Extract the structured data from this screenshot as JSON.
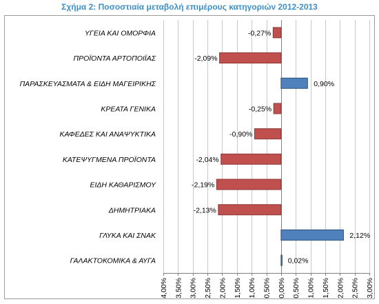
{
  "chart_data": {
    "type": "bar",
    "orientation": "horizontal",
    "title": "Σχήμα 2: Ποσοστιαία μεταβολή επιμέρους κατηγοριών 2012-2013",
    "xlabel": "",
    "ylabel": "",
    "categories": [
      "ΥΓΕΙΑ ΚΑΙ ΟΜΟΡΦΙΑ",
      "ΠΡΟΪΟΝΤΑ ΑΡΤΟΠΟΙΪΑΣ",
      "ΠΑΡΑΣΚΕΥΑΣΜΑΤΑ  & ΕΙΔΗ ΜΑΓΕΙΡΙΚΗΣ",
      "ΚΡΕΑΤΑ ΓΕΝΙΚΑ",
      "ΚΑΦΕΔΕΣ ΚΑΙ ΑΝΑΨΥΚΤΙΚΑ",
      "ΚΑΤΕΨΥΓΜΕΝΑ ΠΡΟΪΟΝΤΑ",
      "ΕΙΔΗ ΚΑΘΑΡΙΣΜΟΥ",
      "ΔΗΜΗΤΡΙΑΚΑ",
      "ΓΛΥΚΑ ΚΑΙ ΣΝΑΚ",
      "ΓΑΛΑΚΤΟΚΟΜΙΚΑ  & ΑΥΓΑ"
    ],
    "values": [
      -0.27,
      -2.09,
      0.9,
      -0.25,
      -0.9,
      -2.04,
      -2.19,
      -2.13,
      2.12,
      0.02
    ],
    "value_labels": [
      "-0,27%",
      "-2,09%",
      "0,90%",
      "-0,25%",
      "-0,90%",
      "-2,04%",
      "-2,19%",
      "-2,13%",
      "2,12%",
      "0,02%"
    ],
    "xlim": [
      -4.0,
      3.0
    ],
    "xticks": [
      -4.0,
      -3.5,
      -3.0,
      -2.5,
      -2.0,
      -1.5,
      -1.0,
      -0.5,
      0.0,
      0.5,
      1.0,
      1.5,
      2.0,
      2.5,
      3.0
    ],
    "xtick_labels": [
      "-4,00%",
      "-3,50%",
      "-3,00%",
      "-2,50%",
      "-2,00%",
      "-1,50%",
      "-1,00%",
      "-0,50%",
      "0,00%",
      "0,50%",
      "1,00%",
      "1,50%",
      "2,00%",
      "2,50%",
      "3,00%"
    ],
    "grid": true,
    "legend": "none",
    "colors": {
      "negative": "#c0504d",
      "negative_border": "#8c3836",
      "positive": "#4f81bd",
      "positive_border": "#2c4d75",
      "title": "#3d8fc4",
      "grid": "#c8c8c8",
      "axis": "#7f7f7f"
    }
  }
}
